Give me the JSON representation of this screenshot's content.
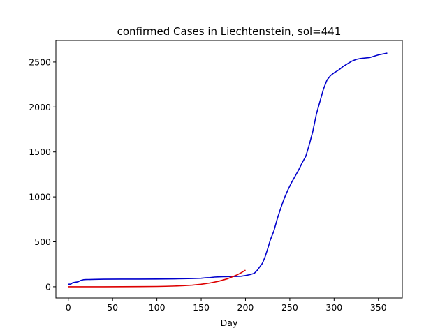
{
  "chart_data": {
    "type": "line",
    "title": "confirmed Cases in Liechtenstein, sol=441",
    "xlabel": "Day",
    "ylabel": "",
    "xlim": [
      -14,
      377
    ],
    "ylim": [
      -125,
      2740
    ],
    "xticks": [
      0,
      50,
      100,
      150,
      200,
      250,
      300,
      350
    ],
    "yticks": [
      0,
      500,
      1000,
      1500,
      2000,
      2500
    ],
    "grid": false,
    "series": [
      {
        "color": "#0000cc",
        "points": [
          [
            0,
            28
          ],
          [
            3,
            30
          ],
          [
            5,
            45
          ],
          [
            8,
            50
          ],
          [
            11,
            55
          ],
          [
            14,
            70
          ],
          [
            17,
            78
          ],
          [
            20,
            80
          ],
          [
            30,
            82
          ],
          [
            40,
            84
          ],
          [
            60,
            85
          ],
          [
            80,
            85
          ],
          [
            100,
            86
          ],
          [
            110,
            87
          ],
          [
            120,
            88
          ],
          [
            130,
            90
          ],
          [
            140,
            92
          ],
          [
            150,
            95
          ],
          [
            155,
            100
          ],
          [
            160,
            102
          ],
          [
            165,
            108
          ],
          [
            170,
            110
          ],
          [
            175,
            112
          ],
          [
            180,
            113
          ],
          [
            190,
            115
          ],
          [
            195,
            117
          ],
          [
            200,
            125
          ],
          [
            205,
            135
          ],
          [
            210,
            150
          ],
          [
            213,
            180
          ],
          [
            216,
            220
          ],
          [
            219,
            260
          ],
          [
            222,
            330
          ],
          [
            225,
            420
          ],
          [
            228,
            520
          ],
          [
            232,
            620
          ],
          [
            236,
            760
          ],
          [
            240,
            880
          ],
          [
            244,
            990
          ],
          [
            248,
            1080
          ],
          [
            252,
            1160
          ],
          [
            256,
            1230
          ],
          [
            260,
            1300
          ],
          [
            264,
            1380
          ],
          [
            268,
            1450
          ],
          [
            272,
            1580
          ],
          [
            276,
            1730
          ],
          [
            280,
            1920
          ],
          [
            284,
            2060
          ],
          [
            288,
            2200
          ],
          [
            292,
            2300
          ],
          [
            296,
            2350
          ],
          [
            300,
            2380
          ],
          [
            305,
            2410
          ],
          [
            310,
            2450
          ],
          [
            315,
            2480
          ],
          [
            320,
            2510
          ],
          [
            325,
            2530
          ],
          [
            330,
            2540
          ],
          [
            340,
            2550
          ],
          [
            350,
            2580
          ],
          [
            360,
            2600
          ]
        ]
      },
      {
        "color": "#dd0000",
        "points": [
          [
            0,
            0
          ],
          [
            20,
            0
          ],
          [
            40,
            0
          ],
          [
            60,
            1
          ],
          [
            80,
            2
          ],
          [
            100,
            3
          ],
          [
            110,
            5
          ],
          [
            120,
            8
          ],
          [
            130,
            12
          ],
          [
            140,
            18
          ],
          [
            150,
            28
          ],
          [
            160,
            42
          ],
          [
            170,
            62
          ],
          [
            180,
            90
          ],
          [
            190,
            130
          ],
          [
            195,
            155
          ],
          [
            200,
            185
          ]
        ]
      }
    ]
  }
}
